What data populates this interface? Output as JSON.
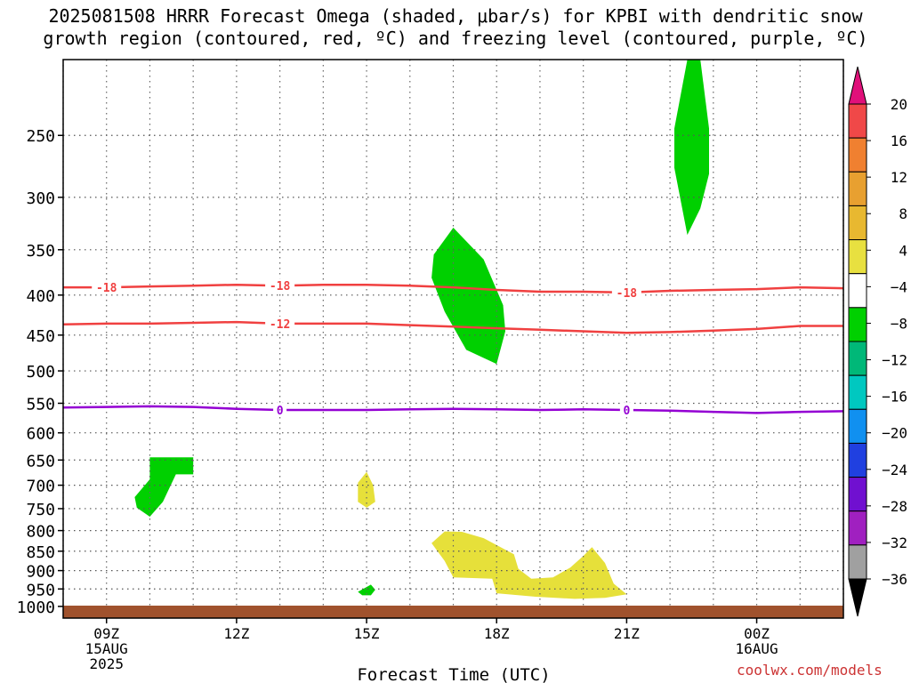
{
  "title_lines": [
    "2025081508 HRRR Forecast Omega (shaded, μbar/s) for KPBI with dendritic snow",
    "growth region (contoured, red, ºC) and freezing level (contoured, purple, ºC)"
  ],
  "credit": "coolwx.com/models",
  "chart_data": {
    "type": "time-height cross section",
    "xlabel": "Forecast Time (UTC)",
    "x_hours_range": [
      8,
      26
    ],
    "xticks": [
      {
        "hour": 9,
        "lines": [
          "09Z",
          "15AUG",
          "2025"
        ]
      },
      {
        "hour": 12,
        "lines": [
          "12Z"
        ]
      },
      {
        "hour": 15,
        "lines": [
          "15Z"
        ]
      },
      {
        "hour": 18,
        "lines": [
          "18Z"
        ]
      },
      {
        "hour": 21,
        "lines": [
          "21Z"
        ]
      },
      {
        "hour": 24,
        "lines": [
          "00Z",
          "16AUG"
        ]
      }
    ],
    "y_scale": "log-pressure (hPa, inverted)",
    "ylim": [
      1035,
      200
    ],
    "yticks": [
      250,
      300,
      350,
      400,
      450,
      500,
      550,
      600,
      650,
      700,
      750,
      800,
      850,
      900,
      950,
      1000
    ],
    "omega_shaded_regions": [
      {
        "level": "-8 to -4",
        "color": "#00d000",
        "points": [
          [
            22.7,
            200
          ],
          [
            22.9,
            245
          ],
          [
            22.9,
            280
          ],
          [
            22.7,
            310
          ],
          [
            22.4,
            335
          ],
          [
            22.1,
            275
          ],
          [
            22.1,
            245
          ],
          [
            22.4,
            200
          ]
        ]
      },
      {
        "level": "-8 to -4",
        "color": "#00d000",
        "points": [
          [
            17.0,
            328
          ],
          [
            17.7,
            360
          ],
          [
            18.15,
            412
          ],
          [
            18.2,
            445
          ],
          [
            18.0,
            490
          ],
          [
            17.3,
            470
          ],
          [
            16.8,
            420
          ],
          [
            16.5,
            380
          ],
          [
            16.55,
            355
          ]
        ]
      },
      {
        "level": "-8 to -4",
        "color": "#00d000",
        "points": [
          [
            10.0,
            645
          ],
          [
            11.0,
            645
          ],
          [
            11.0,
            678
          ],
          [
            10.6,
            678
          ],
          [
            10.3,
            735
          ],
          [
            10.0,
            768
          ],
          [
            9.7,
            748
          ],
          [
            9.65,
            725
          ],
          [
            10.0,
            688
          ]
        ]
      },
      {
        "level": "-8 to -4",
        "color": "#00d000",
        "points": [
          [
            14.8,
            958
          ],
          [
            15.1,
            938
          ],
          [
            15.2,
            952
          ],
          [
            15.1,
            968
          ],
          [
            14.9,
            968
          ]
        ]
      },
      {
        "level": "4 to 8",
        "color": "#e6e03a",
        "points": [
          [
            15.0,
            673
          ],
          [
            15.15,
            700
          ],
          [
            15.2,
            735
          ],
          [
            15.0,
            748
          ],
          [
            14.8,
            735
          ],
          [
            14.8,
            695
          ]
        ]
      },
      {
        "level": "4 to 8",
        "color": "#e6e03a",
        "points": [
          [
            16.5,
            830
          ],
          [
            16.8,
            802
          ],
          [
            17.2,
            803
          ],
          [
            17.7,
            818
          ],
          [
            18.4,
            858
          ],
          [
            18.5,
            895
          ],
          [
            18.8,
            922
          ],
          [
            19.3,
            918
          ],
          [
            19.7,
            892
          ],
          [
            20.0,
            862
          ],
          [
            20.2,
            840
          ],
          [
            20.5,
            880
          ],
          [
            20.7,
            935
          ],
          [
            21.0,
            965
          ],
          [
            20.5,
            975
          ],
          [
            19.8,
            978
          ],
          [
            18.9,
            972
          ],
          [
            18.0,
            962
          ],
          [
            17.9,
            922
          ],
          [
            17.0,
            918
          ],
          [
            16.8,
            875
          ]
        ]
      }
    ],
    "contours": [
      {
        "label": "-18",
        "group": "dendritic snow growth region",
        "color": "#f04040",
        "points": [
          [
            8,
            391
          ],
          [
            9,
            391
          ],
          [
            10,
            390
          ],
          [
            11,
            389
          ],
          [
            12,
            388
          ],
          [
            13,
            389
          ],
          [
            14,
            388
          ],
          [
            15,
            388
          ],
          [
            16,
            389
          ],
          [
            17,
            391
          ],
          [
            18,
            394
          ],
          [
            19,
            396
          ],
          [
            20,
            396
          ],
          [
            21,
            397
          ],
          [
            22,
            395
          ],
          [
            23,
            394
          ],
          [
            24,
            393
          ],
          [
            25,
            391
          ],
          [
            26,
            392
          ]
        ],
        "label_hours": [
          9,
          13,
          21
        ]
      },
      {
        "label": "-12",
        "group": "dendritic snow growth region",
        "color": "#f04040",
        "points": [
          [
            8,
            436
          ],
          [
            9,
            435
          ],
          [
            10,
            435
          ],
          [
            11,
            434
          ],
          [
            12,
            433
          ],
          [
            13,
            435
          ],
          [
            14,
            435
          ],
          [
            15,
            435
          ],
          [
            16,
            437
          ],
          [
            17,
            439
          ],
          [
            18,
            441
          ],
          [
            19,
            443
          ],
          [
            20,
            445
          ],
          [
            21,
            447
          ],
          [
            22,
            446
          ],
          [
            23,
            444
          ],
          [
            24,
            442
          ],
          [
            25,
            438
          ],
          [
            26,
            438
          ]
        ],
        "label_hours": [
          13
        ]
      },
      {
        "label": "0",
        "group": "freezing level",
        "color": "#9400d3",
        "points": [
          [
            8,
            557
          ],
          [
            9,
            556
          ],
          [
            10,
            555
          ],
          [
            11,
            556
          ],
          [
            12,
            559
          ],
          [
            13,
            561
          ],
          [
            14,
            561
          ],
          [
            15,
            561
          ],
          [
            16,
            560
          ],
          [
            17,
            559
          ],
          [
            18,
            560
          ],
          [
            19,
            561
          ],
          [
            20,
            560
          ],
          [
            21,
            561
          ],
          [
            22,
            562
          ],
          [
            23,
            564
          ],
          [
            24,
            566
          ],
          [
            25,
            564
          ],
          [
            26,
            563
          ]
        ],
        "label_hours": [
          13,
          21
        ]
      }
    ],
    "terrain_color": "#a0522d",
    "colorbar": {
      "labels": [
        "20",
        "16",
        "12",
        "8",
        "4",
        "−4",
        "−8",
        "−12",
        "−16",
        "−20",
        "−24",
        "−28",
        "−32",
        "−36"
      ],
      "colors": [
        "#e8d020",
        "#e08800",
        "#f08030",
        "#f04848",
        "#d01060"
      ],
      "bands_top_to_bottom": [
        "#f04848",
        "#f08030",
        "#e8a030",
        "#e8b830",
        "#e8e040",
        "#ffffff",
        "#00d000",
        "#00b878",
        "#00c8c0",
        "#1090f0",
        "#2040e0",
        "#7010d0",
        "#a020c0",
        "#a0a0a0"
      ],
      "top_arrow_color": "#e0107a",
      "bottom_arrow_color": "#000000"
    }
  }
}
